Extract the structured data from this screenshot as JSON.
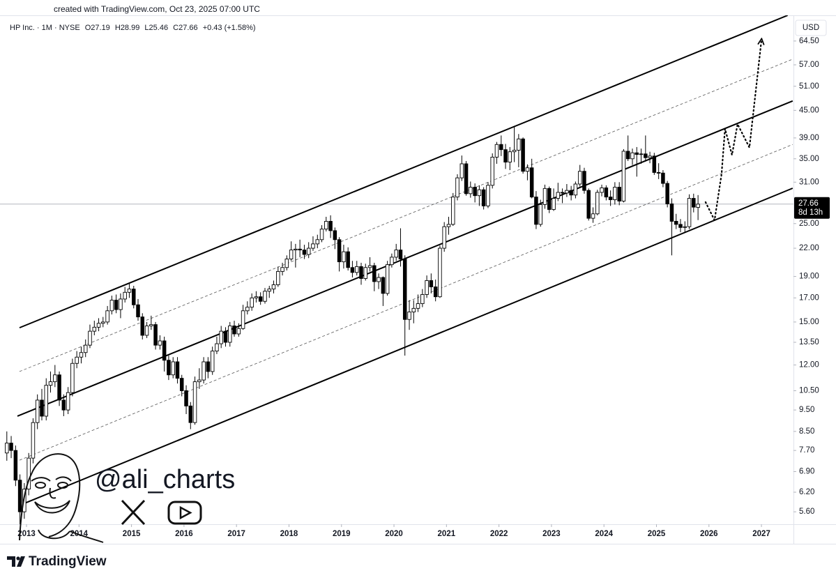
{
  "chart_data": {
    "type": "candlestick",
    "created_note": "created with TradingView.com, Oct 23, 2025 07:00 UTC",
    "symbol": "HP Inc. · 1M · NYSE",
    "header": [
      "O27.19",
      "H28.99",
      "L25.46",
      "C27.66",
      "+0.43 (+1.58%)"
    ],
    "currency": "USD",
    "last_price": 27.66,
    "countdown": "8d 13h",
    "watermark": "@ali_charts",
    "brand": "TradingView",
    "log_scale": true,
    "up_color": "#ffffff",
    "down_color": "#000000",
    "wick_color": "#000000",
    "xlim": [
      2012.495,
      2027.61
    ],
    "xticks": [
      2013,
      2014,
      2015,
      2016,
      2017,
      2018,
      2019,
      2020,
      2021,
      2022,
      2023,
      2024,
      2025,
      2026,
      2027
    ],
    "ylim": [
      5.25,
      73.7
    ],
    "yticks": [
      {
        "value": 5.6,
        "label": "5.60"
      },
      {
        "value": 6.2,
        "label": "6.20"
      },
      {
        "value": 6.9,
        "label": "6.90"
      },
      {
        "value": 7.7,
        "label": "7.70"
      },
      {
        "value": 8.5,
        "label": "8.50"
      },
      {
        "value": 9.5,
        "label": "9.50"
      },
      {
        "value": 10.5,
        "label": "10.50"
      },
      {
        "value": 12,
        "label": "12.00"
      },
      {
        "value": 13.5,
        "label": "13.50"
      },
      {
        "value": 15,
        "label": "15.00"
      },
      {
        "value": 17,
        "label": "17.00"
      },
      {
        "value": 19,
        "label": "19.00"
      },
      {
        "value": 22,
        "label": "22.00"
      },
      {
        "value": 25,
        "label": "25.00"
      },
      {
        "value": 31,
        "label": "31.00"
      },
      {
        "value": 35,
        "label": "35.00"
      },
      {
        "value": 39,
        "label": "39.00"
      },
      {
        "value": 45,
        "label": "45.00"
      },
      {
        "value": 51,
        "label": "51.00"
      },
      {
        "value": 57,
        "label": "57.00"
      },
      {
        "value": 64.5,
        "label": "64.50"
      }
    ],
    "x": [
      2012.625,
      2012.708,
      2012.792,
      2012.875,
      2012.958,
      2013.042,
      2013.125,
      2013.208,
      2013.292,
      2013.375,
      2013.458,
      2013.542,
      2013.625,
      2013.708,
      2013.792,
      2013.875,
      2013.958,
      2014.042,
      2014.125,
      2014.208,
      2014.292,
      2014.375,
      2014.458,
      2014.542,
      2014.625,
      2014.708,
      2014.792,
      2014.875,
      2014.958,
      2015.042,
      2015.125,
      2015.208,
      2015.292,
      2015.375,
      2015.458,
      2015.542,
      2015.625,
      2015.708,
      2015.792,
      2015.875,
      2015.958,
      2016.042,
      2016.125,
      2016.208,
      2016.292,
      2016.375,
      2016.458,
      2016.542,
      2016.625,
      2016.708,
      2016.792,
      2016.875,
      2016.958,
      2017.042,
      2017.125,
      2017.208,
      2017.292,
      2017.375,
      2017.458,
      2017.542,
      2017.625,
      2017.708,
      2017.792,
      2017.875,
      2017.958,
      2018.042,
      2018.125,
      2018.208,
      2018.292,
      2018.375,
      2018.458,
      2018.542,
      2018.625,
      2018.708,
      2018.792,
      2018.875,
      2018.958,
      2019.042,
      2019.125,
      2019.208,
      2019.292,
      2019.375,
      2019.458,
      2019.542,
      2019.625,
      2019.708,
      2019.792,
      2019.875,
      2019.958,
      2020.042,
      2020.125,
      2020.208,
      2020.292,
      2020.375,
      2020.458,
      2020.542,
      2020.625,
      2020.708,
      2020.792,
      2020.875,
      2020.958,
      2021.042,
      2021.125,
      2021.208,
      2021.292,
      2021.375,
      2021.458,
      2021.542,
      2021.625,
      2021.708,
      2021.792,
      2021.875,
      2021.958,
      2022.042,
      2022.125,
      2022.208,
      2022.292,
      2022.375,
      2022.458,
      2022.542,
      2022.625,
      2022.708,
      2022.792,
      2022.875,
      2022.958,
      2023.042,
      2023.125,
      2023.208,
      2023.292,
      2023.375,
      2023.458,
      2023.542,
      2023.625,
      2023.708,
      2023.792,
      2023.875,
      2023.958,
      2024.042,
      2024.125,
      2024.208,
      2024.292,
      2024.375,
      2024.458,
      2024.542,
      2024.625,
      2024.708,
      2024.792,
      2024.875,
      2024.958,
      2025.042,
      2025.125,
      2025.208,
      2025.292,
      2025.375,
      2025.458,
      2025.542,
      2025.625,
      2025.708,
      2025.792
    ],
    "open": [
      7.6,
      8.0,
      7.7,
      6.6,
      5.6,
      6.3,
      7.4,
      8.9,
      10.0,
      9.2,
      10.8,
      11.0,
      11.4,
      10.0,
      9.5,
      10.4,
      12.1,
      12.5,
      12.8,
      13.3,
      14.3,
      14.6,
      14.9,
      15.0,
      15.9,
      16.8,
      16.0,
      16.9,
      17.5,
      17.8,
      16.4,
      15.4,
      14.0,
      14.7,
      14.8,
      13.3,
      13.6,
      12.3,
      11.4,
      12.2,
      11.2,
      10.5,
      9.7,
      8.9,
      11.0,
      11.1,
      12.2,
      11.6,
      12.9,
      13.4,
      14.3,
      13.5,
      14.7,
      14.1,
      14.5,
      15.9,
      16.2,
      17.0,
      17.1,
      16.7,
      17.6,
      17.8,
      18.2,
      19.5,
      19.9,
      20.8,
      21.8,
      21.9,
      21.8,
      21.3,
      22.0,
      22.5,
      23.0,
      24.3,
      25.3,
      24.1,
      23.0,
      20.5,
      21.6,
      19.9,
      19.4,
      20.0,
      18.8,
      19.9,
      20.1,
      18.5,
      18.9,
      17.4,
      20.2,
      21.0,
      21.8,
      20.8,
      15.2,
      15.8,
      16.1,
      16.5,
      17.3,
      18.6,
      18.0,
      17.1,
      22.0,
      24.6,
      24.9,
      28.7,
      31.7,
      34.1,
      29.2,
      30.2,
      28.9,
      29.8,
      27.4,
      30.5,
      35.3,
      37.7,
      36.7,
      34.4,
      36.3,
      36.6,
      38.8,
      32.8,
      33.4,
      28.7,
      24.9,
      27.6,
      30.0,
      26.9,
      28.5,
      29.4,
      29.3,
      29.7,
      29.0,
      30.7,
      32.8,
      29.7,
      25.7,
      26.3,
      29.4,
      30.1,
      28.7,
      28.3,
      30.2,
      28.1,
      36.4,
      35.0,
      36.1,
      35.8,
      35.9,
      35.2,
      35.5,
      32.6,
      32.5,
      30.8,
      27.7,
      25.3,
      24.9,
      24.5,
      24.6,
      28.5,
      27.19
    ],
    "high": [
      8.5,
      8.3,
      7.9,
      6.8,
      6.5,
      7.6,
      9.1,
      10.3,
      10.6,
      11.2,
      11.6,
      12.0,
      11.6,
      10.3,
      10.7,
      12.4,
      12.9,
      13.2,
      13.7,
      14.8,
      15.1,
      15.3,
      15.4,
      16.3,
      17.2,
      17.3,
      17.4,
      18.0,
      18.4,
      18.1,
      16.9,
      15.7,
      15.0,
      15.5,
      15.0,
      14.0,
      13.9,
      12.6,
      12.5,
      12.5,
      11.4,
      10.8,
      9.9,
      11.3,
      11.8,
      12.5,
      12.5,
      13.2,
      13.9,
      14.7,
      14.6,
      15.0,
      15.1,
      14.9,
      16.4,
      16.7,
      17.4,
      17.6,
      17.5,
      17.9,
      18.1,
      18.6,
      20.0,
      20.4,
      21.2,
      22.8,
      22.5,
      23.0,
      22.4,
      22.7,
      23.4,
      23.6,
      24.8,
      25.9,
      26.1,
      24.5,
      23.3,
      22.4,
      22.1,
      20.6,
      20.6,
      20.4,
      20.3,
      21.0,
      20.4,
      19.3,
      19.0,
      20.6,
      21.4,
      22.5,
      24.4,
      21.2,
      16.8,
      16.8,
      17.3,
      17.8,
      19.1,
      19.3,
      18.7,
      22.3,
      25.2,
      25.9,
      29.3,
      32.3,
      35.6,
      34.6,
      31.1,
      30.8,
      30.5,
      30.2,
      31.0,
      36.0,
      38.2,
      39.5,
      37.8,
      37.2,
      41.5,
      39.8,
      39.1,
      34.0,
      35.0,
      29.6,
      28.3,
      30.6,
      30.3,
      30.0,
      30.9,
      30.0,
      30.7,
      30.4,
      31.1,
      33.9,
      33.4,
      30.0,
      27.2,
      29.8,
      30.6,
      30.5,
      29.7,
      31.0,
      31.0,
      36.8,
      39.5,
      36.9,
      37.2,
      36.9,
      39.5,
      36.3,
      36.1,
      34.2,
      33.0,
      31.2,
      28.5,
      26.3,
      25.6,
      25.3,
      29.1,
      29.2,
      28.99
    ],
    "low": [
      7.3,
      7.4,
      6.4,
      5.2,
      5.4,
      6.1,
      7.2,
      8.6,
      9.0,
      9.0,
      10.4,
      10.7,
      9.7,
      9.2,
      9.3,
      10.2,
      11.8,
      12.1,
      12.5,
      13.1,
      14.0,
      14.3,
      14.6,
      14.8,
      15.6,
      15.7,
      15.3,
      16.6,
      17.0,
      16.1,
      15.1,
      13.7,
      13.8,
      14.4,
      13.0,
      13.0,
      11.6,
      11.1,
      11.2,
      10.9,
      10.2,
      9.3,
      8.6,
      8.8,
      10.6,
      10.9,
      11.2,
      11.4,
      12.7,
      13.1,
      13.2,
      13.2,
      13.9,
      13.9,
      14.4,
      15.6,
      15.9,
      16.6,
      16.4,
      16.5,
      17.0,
      17.4,
      18.0,
      19.1,
      19.6,
      20.6,
      19.9,
      21.0,
      20.8,
      20.9,
      21.7,
      22.0,
      22.7,
      24.0,
      23.2,
      21.9,
      19.5,
      19.8,
      19.6,
      18.9,
      19.1,
      18.2,
      18.6,
      19.5,
      17.6,
      17.8,
      16.3,
      17.2,
      19.9,
      20.6,
      20.0,
      12.6,
      14.4,
      14.9,
      15.8,
      16.2,
      17.0,
      17.4,
      16.7,
      17.0,
      21.6,
      23.6,
      24.7,
      28.2,
      31.2,
      28.9,
      28.6,
      27.9,
      27.4,
      26.9,
      27.1,
      30.0,
      34.1,
      35.5,
      33.2,
      33.0,
      34.4,
      33.5,
      32.4,
      31.3,
      28.5,
      24.3,
      24.6,
      27.0,
      26.4,
      26.7,
      28.1,
      27.8,
      28.7,
      28.2,
      28.5,
      30.3,
      29.2,
      25.4,
      25.1,
      26.1,
      28.8,
      28.2,
      27.4,
      27.6,
      27.5,
      27.9,
      34.6,
      33.9,
      31.9,
      34.1,
      34.5,
      34.2,
      32.2,
      31.5,
      30.2,
      27.2,
      21.2,
      24.3,
      23.9,
      23.9,
      24.3,
      26.5,
      25.46
    ],
    "close": [
      8.0,
      7.7,
      6.6,
      5.6,
      6.3,
      7.4,
      8.9,
      10.0,
      9.2,
      10.8,
      11.0,
      11.4,
      10.0,
      9.5,
      10.4,
      12.1,
      12.5,
      12.8,
      13.3,
      14.3,
      14.6,
      14.9,
      15.0,
      15.9,
      16.8,
      16.0,
      16.9,
      17.5,
      17.8,
      16.4,
      15.4,
      14.0,
      14.7,
      14.8,
      13.3,
      13.6,
      12.3,
      11.4,
      12.2,
      11.2,
      10.5,
      9.7,
      8.9,
      11.0,
      11.1,
      12.2,
      11.6,
      12.9,
      13.4,
      14.3,
      13.5,
      14.7,
      14.1,
      14.5,
      15.9,
      16.2,
      17.0,
      17.1,
      16.7,
      17.6,
      17.8,
      18.2,
      19.5,
      19.9,
      20.8,
      21.8,
      21.9,
      21.8,
      21.3,
      22.0,
      22.5,
      23.0,
      24.3,
      25.3,
      24.1,
      23.0,
      20.5,
      21.6,
      19.9,
      19.4,
      20.0,
      18.8,
      19.9,
      20.1,
      18.5,
      18.9,
      17.4,
      20.2,
      21.0,
      21.8,
      20.8,
      15.2,
      15.8,
      16.1,
      16.5,
      17.3,
      18.6,
      18.0,
      17.1,
      22.0,
      24.6,
      24.9,
      28.7,
      31.7,
      34.1,
      29.2,
      30.2,
      28.9,
      29.8,
      27.4,
      30.5,
      35.3,
      37.7,
      36.7,
      34.4,
      36.3,
      36.6,
      38.8,
      32.8,
      33.4,
      28.7,
      24.9,
      27.6,
      30.0,
      26.9,
      28.5,
      29.4,
      29.3,
      29.7,
      29.0,
      30.7,
      32.8,
      29.7,
      25.7,
      26.3,
      29.4,
      30.1,
      28.7,
      28.3,
      30.2,
      28.1,
      36.4,
      35.0,
      36.1,
      35.8,
      35.9,
      35.2,
      35.5,
      32.6,
      32.5,
      30.8,
      27.7,
      25.3,
      24.9,
      24.5,
      24.6,
      28.5,
      27.23,
      27.66
    ],
    "trend_lines": [
      {
        "style": "solid",
        "x": [
          2012.867,
          2027.5
        ],
        "y": [
          14.56,
          73.7
        ]
      },
      {
        "style": "dashed",
        "x": [
          2012.867,
          2027.595
        ],
        "y": [
          11.6,
          58.7
        ]
      },
      {
        "style": "solid",
        "x": [
          2012.827,
          2027.595
        ],
        "y": [
          9.2,
          47.25
        ]
      },
      {
        "style": "dashed",
        "x": [
          2012.867,
          2027.595
        ],
        "y": [
          7.32,
          37.7
        ]
      },
      {
        "style": "solid",
        "x": [
          2012.96,
          2027.595
        ],
        "y": [
          5.85,
          30.04
        ]
      }
    ],
    "projection": {
      "x": [
        2025.935,
        2026.107,
        2026.24,
        2026.306,
        2026.439,
        2026.545,
        2026.771,
        2026.997
      ],
      "y": [
        27.95,
        25.44,
        32.3,
        40.9,
        35.7,
        41.9,
        37.1,
        64.3
      ]
    }
  }
}
